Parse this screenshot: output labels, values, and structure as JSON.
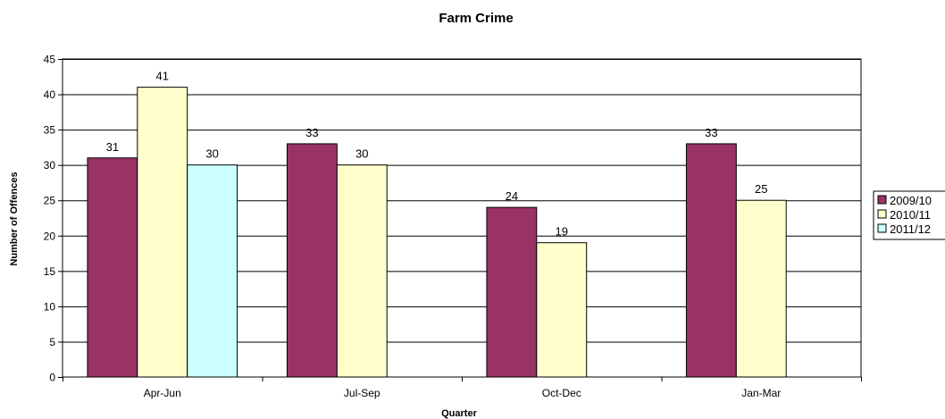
{
  "chart_data": {
    "type": "bar",
    "title": "Farm Crime",
    "xlabel": "Quarter",
    "ylabel": "Number of Offences",
    "ylim": [
      0,
      45
    ],
    "yticks": [
      0,
      5,
      10,
      15,
      20,
      25,
      30,
      35,
      40,
      45
    ],
    "categories": [
      "Apr-Jun",
      "Jul-Sep",
      "Oct-Dec",
      "Jan-Mar"
    ],
    "grid": true,
    "legend_position": "right",
    "series": [
      {
        "name": "2009/10",
        "color": "#993366",
        "values": [
          31,
          33,
          24,
          33
        ]
      },
      {
        "name": "2010/11",
        "color": "#ffffcc",
        "values": [
          41,
          30,
          19,
          25
        ]
      },
      {
        "name": "2011/12",
        "color": "#ccffff",
        "values": [
          30,
          null,
          null,
          null
        ]
      }
    ]
  }
}
